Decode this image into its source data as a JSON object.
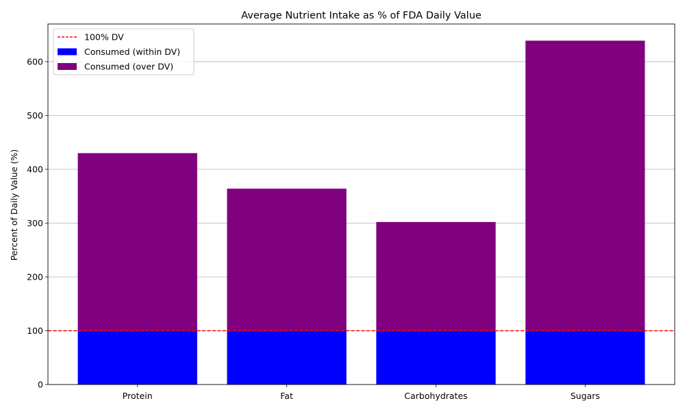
{
  "chart_data": {
    "type": "bar",
    "title": "Average Nutrient Intake as % of FDA Daily Value",
    "xlabel": "",
    "ylabel": "Percent of Daily Value (%)",
    "categories": [
      "Protein",
      "Fat",
      "Carbohydrates",
      "Sugars"
    ],
    "ylim": [
      0,
      670
    ],
    "yticks": [
      0,
      100,
      200,
      300,
      400,
      500,
      600
    ],
    "grid": "horizontal",
    "legend_position": "top-left",
    "reference_line": {
      "name": "100% DV",
      "value": 100,
      "color": "#ff0000",
      "style": "dashed"
    },
    "series": [
      {
        "name": "Consumed (within DV)",
        "color": "#0000ff",
        "values": [
          100,
          100,
          100,
          100
        ]
      },
      {
        "name": "Consumed (over DV)",
        "color": "#800080",
        "values": [
          330,
          264,
          202,
          539
        ]
      }
    ],
    "totals": [
      430,
      364,
      302,
      639
    ]
  }
}
